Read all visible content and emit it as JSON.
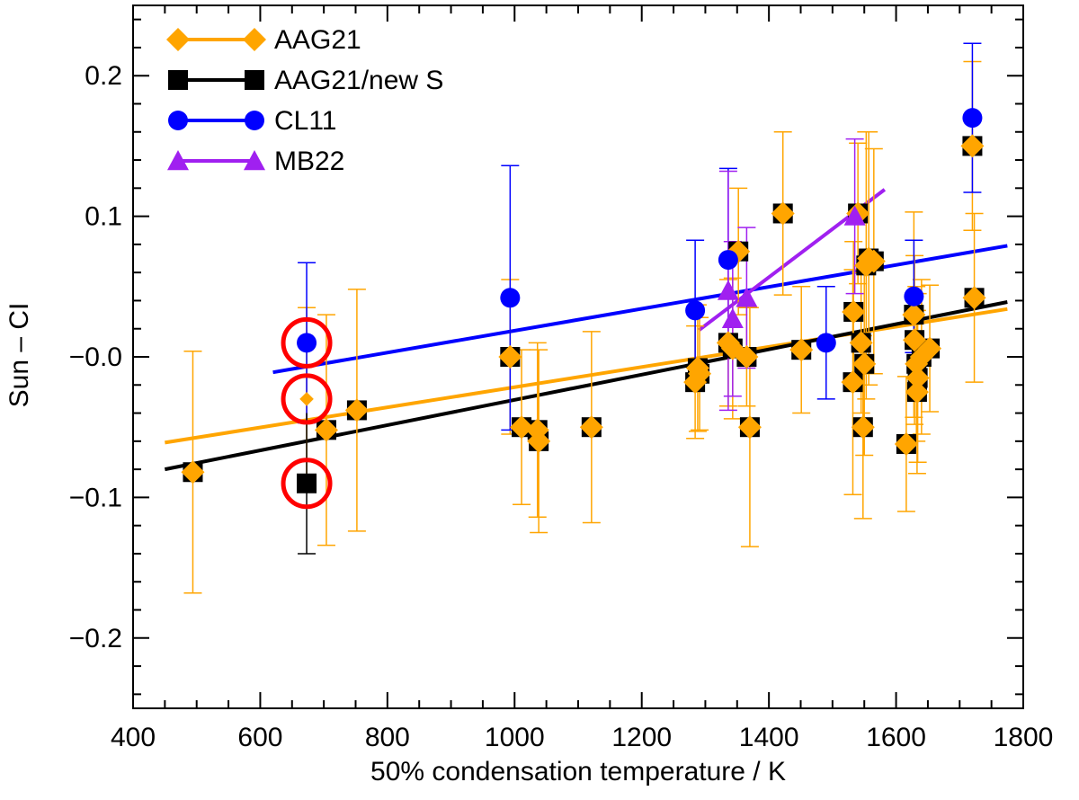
{
  "chart_data": {
    "type": "scatter",
    "xlabel": "50% condensation temperature / K",
    "ylabel": "Sun – CI",
    "xlim": [
      400,
      1800
    ],
    "ylim": [
      -0.25,
      0.25
    ],
    "x_ticks": [
      400,
      600,
      800,
      1000,
      1200,
      1400,
      1600,
      1800
    ],
    "y_ticks": [
      -0.2,
      -0.1,
      0.0,
      0.1,
      0.2
    ],
    "y_tick_labels": [
      "−0.2",
      "−0.1",
      "−0.0",
      "0.1",
      "0.2"
    ],
    "legend": {
      "placement": "top-left",
      "entries": [
        "AAG21",
        "AAG21/new S",
        "CL11",
        "MB22"
      ]
    },
    "colors": {
      "AAG21": "#ffa500",
      "AAG21_new_S": "#000000",
      "CL11": "#0000ff",
      "MB22": "#a020f0",
      "highlight": "#ff0000"
    },
    "series": [
      {
        "name": "AAG21/new S",
        "marker": "square",
        "points": [
          [
            494,
            -0.082
          ],
          [
            673,
            -0.09
          ],
          [
            704,
            -0.052
          ],
          [
            752,
            -0.038
          ],
          [
            993,
            0.0
          ],
          [
            1011,
            -0.05
          ],
          [
            1036,
            -0.052
          ],
          [
            1038,
            -0.06
          ],
          [
            1121,
            -0.05
          ],
          [
            1284,
            -0.018
          ],
          [
            1288,
            -0.008
          ],
          [
            1291,
            -0.012
          ],
          [
            1336,
            0.01
          ],
          [
            1343,
            0.006
          ],
          [
            1352,
            0.075
          ],
          [
            1365,
            0.0
          ],
          [
            1370,
            -0.05
          ],
          [
            1422,
            0.102
          ],
          [
            1451,
            0.005
          ],
          [
            1532,
            -0.018
          ],
          [
            1533,
            0.032
          ],
          [
            1540,
            0.102
          ],
          [
            1545,
            0.01
          ],
          [
            1548,
            -0.05
          ],
          [
            1550,
            -0.005
          ],
          [
            1553,
            0.065
          ],
          [
            1557,
            0.07
          ],
          [
            1565,
            0.068
          ],
          [
            1616,
            -0.062
          ],
          [
            1628,
            0.03
          ],
          [
            1629,
            0.012
          ],
          [
            1632,
            -0.005
          ],
          [
            1633,
            -0.025
          ],
          [
            1634,
            -0.015
          ],
          [
            1640,
            0.0
          ],
          [
            1653,
            0.006
          ],
          [
            1720,
            0.15
          ],
          [
            1723,
            0.042
          ]
        ]
      },
      {
        "name": "AAG21",
        "marker": "diamond",
        "points": [
          [
            494,
            -0.082,
            0.086
          ],
          [
            673,
            -0.03,
            0.065
          ],
          [
            704,
            -0.052,
            0.082
          ],
          [
            752,
            -0.038,
            0.086
          ],
          [
            993,
            0.0,
            0.055
          ],
          [
            1011,
            -0.05,
            0.055
          ],
          [
            1036,
            -0.052,
            0.062
          ],
          [
            1038,
            -0.06,
            0.065
          ],
          [
            1121,
            -0.05,
            0.068
          ],
          [
            1284,
            -0.018,
            0.04
          ],
          [
            1288,
            -0.008,
            0.045
          ],
          [
            1291,
            -0.012,
            0.04
          ],
          [
            1336,
            0.01,
            0.045
          ],
          [
            1343,
            0.006,
            0.05
          ],
          [
            1352,
            0.075,
            0.045
          ],
          [
            1365,
            0.0,
            0.035
          ],
          [
            1370,
            -0.05,
            0.085
          ],
          [
            1422,
            0.102,
            0.058
          ],
          [
            1451,
            0.005,
            0.045
          ],
          [
            1532,
            -0.018,
            0.08
          ],
          [
            1533,
            0.032,
            0.05
          ],
          [
            1540,
            0.102,
            0.05
          ],
          [
            1545,
            0.01,
            0.05
          ],
          [
            1548,
            -0.05,
            0.065
          ],
          [
            1550,
            -0.005,
            0.065
          ],
          [
            1553,
            0.065,
            0.095
          ],
          [
            1557,
            0.07,
            0.09
          ],
          [
            1565,
            0.068,
            0.08
          ],
          [
            1616,
            -0.062,
            0.048
          ],
          [
            1628,
            0.03,
            0.073
          ],
          [
            1629,
            0.012,
            0.06
          ],
          [
            1632,
            -0.005,
            0.055
          ],
          [
            1633,
            -0.025,
            0.058
          ],
          [
            1634,
            -0.015,
            0.06
          ],
          [
            1640,
            0.0,
            0.055
          ],
          [
            1653,
            0.006,
            0.045
          ],
          [
            1720,
            0.15,
            0.06
          ],
          [
            1723,
            0.042,
            0.06
          ]
        ]
      },
      {
        "name": "CL11",
        "marker": "circle",
        "points": [
          [
            673,
            0.01,
            0.057
          ],
          [
            993,
            0.042,
            0.094
          ],
          [
            1284,
            0.033,
            0.05
          ],
          [
            1336,
            0.069,
            0.065
          ],
          [
            1490,
            0.01,
            0.04
          ],
          [
            1628,
            0.043,
            0.04
          ],
          [
            1720,
            0.17,
            0.053
          ]
        ]
      },
      {
        "name": "MB22",
        "marker": "triangle",
        "points": [
          [
            1336,
            0.047,
            0.085
          ],
          [
            1343,
            0.027,
            0.055
          ],
          [
            1365,
            0.042,
            0.05
          ],
          [
            1535,
            0.1,
            0.055
          ]
        ]
      }
    ],
    "fits": [
      {
        "series": "AAG21",
        "x": [
          450,
          1775
        ],
        "y": [
          -0.061,
          0.034
        ]
      },
      {
        "series": "AAG21/new S",
        "x": [
          450,
          1775
        ],
        "y": [
          -0.08,
          0.039
        ]
      },
      {
        "series": "CL11",
        "x": [
          620,
          1775
        ],
        "y": [
          -0.011,
          0.079
        ]
      },
      {
        "series": "MB22",
        "x": [
          1290,
          1582
        ],
        "y": [
          0.019,
          0.119
        ]
      }
    ],
    "highlighted_points": [
      [
        673,
        0.01
      ],
      [
        673,
        -0.03
      ],
      [
        673,
        -0.09
      ]
    ]
  }
}
